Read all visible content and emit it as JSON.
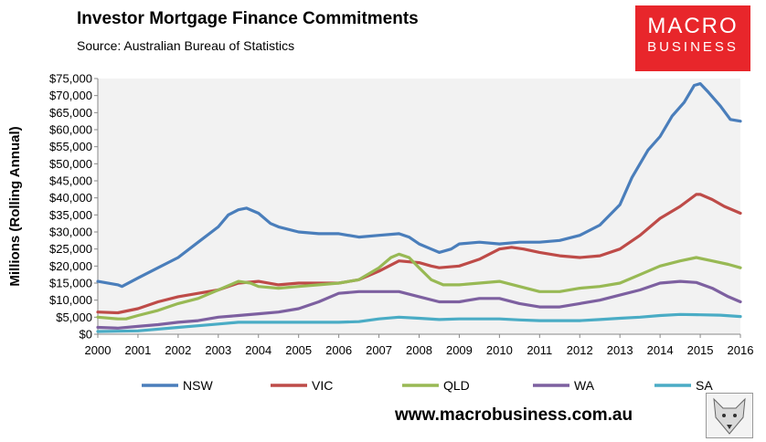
{
  "chart_data": {
    "type": "line",
    "title": "Investor Mortgage Finance Commitments",
    "subtitle": "Source: Australian Bureau of Statistics",
    "xlabel": "",
    "ylabel": "Millions (Rolling Annual)",
    "xlim": [
      2000,
      2016
    ],
    "ylim": [
      0,
      75000
    ],
    "x_ticks": [
      "2000",
      "2001",
      "2002",
      "2003",
      "2004",
      "2005",
      "2006",
      "2007",
      "2008",
      "2009",
      "2010",
      "2011",
      "2012",
      "2013",
      "2014",
      "2015",
      "2016"
    ],
    "y_ticks": [
      "$0",
      "$5,000",
      "$10,000",
      "$15,000",
      "$20,000",
      "$25,000",
      "$30,000",
      "$35,000",
      "$40,000",
      "$45,000",
      "$50,000",
      "$55,000",
      "$60,000",
      "$65,000",
      "$70,000",
      "$75,000"
    ],
    "grid": false,
    "legend_position": "bottom",
    "series": [
      {
        "name": "NSW",
        "color": "#4a7ebb",
        "points": [
          [
            2000,
            15500
          ],
          [
            2000.5,
            14500
          ],
          [
            2000.6,
            14000
          ],
          [
            2001,
            16500
          ],
          [
            2001.5,
            19500
          ],
          [
            2002,
            22500
          ],
          [
            2002.5,
            27000
          ],
          [
            2003,
            31500
          ],
          [
            2003.25,
            35000
          ],
          [
            2003.5,
            36500
          ],
          [
            2003.7,
            37000
          ],
          [
            2004,
            35500
          ],
          [
            2004.3,
            32500
          ],
          [
            2004.5,
            31500
          ],
          [
            2005,
            30000
          ],
          [
            2005.5,
            29500
          ],
          [
            2006,
            29500
          ],
          [
            2006.5,
            28500
          ],
          [
            2007,
            29000
          ],
          [
            2007.5,
            29500
          ],
          [
            2007.75,
            28500
          ],
          [
            2008,
            26500
          ],
          [
            2008.3,
            25000
          ],
          [
            2008.5,
            24000
          ],
          [
            2008.8,
            25000
          ],
          [
            2009,
            26500
          ],
          [
            2009.5,
            27000
          ],
          [
            2010,
            26500
          ],
          [
            2010.5,
            27000
          ],
          [
            2011,
            27000
          ],
          [
            2011.5,
            27500
          ],
          [
            2012,
            29000
          ],
          [
            2012.5,
            32000
          ],
          [
            2013,
            38000
          ],
          [
            2013.3,
            46000
          ],
          [
            2013.7,
            54000
          ],
          [
            2014,
            58000
          ],
          [
            2014.3,
            64000
          ],
          [
            2014.6,
            68000
          ],
          [
            2014.85,
            73000
          ],
          [
            2015,
            73500
          ],
          [
            2015.2,
            71000
          ],
          [
            2015.5,
            67000
          ],
          [
            2015.75,
            63000
          ],
          [
            2016,
            62500
          ]
        ]
      },
      {
        "name": "VIC",
        "color": "#be4b48",
        "points": [
          [
            2000,
            6500
          ],
          [
            2000.5,
            6300
          ],
          [
            2001,
            7500
          ],
          [
            2001.5,
            9500
          ],
          [
            2002,
            11000
          ],
          [
            2002.5,
            12000
          ],
          [
            2003,
            13000
          ],
          [
            2003.5,
            15000
          ],
          [
            2004,
            15500
          ],
          [
            2004.5,
            14500
          ],
          [
            2005,
            15000
          ],
          [
            2005.5,
            15000
          ],
          [
            2006,
            15000
          ],
          [
            2006.5,
            16000
          ],
          [
            2007,
            18500
          ],
          [
            2007.5,
            21500
          ],
          [
            2008,
            21000
          ],
          [
            2008.3,
            20000
          ],
          [
            2008.5,
            19500
          ],
          [
            2009,
            20000
          ],
          [
            2009.5,
            22000
          ],
          [
            2010,
            25000
          ],
          [
            2010.3,
            25500
          ],
          [
            2010.6,
            25000
          ],
          [
            2011,
            24000
          ],
          [
            2011.5,
            23000
          ],
          [
            2012,
            22500
          ],
          [
            2012.5,
            23000
          ],
          [
            2013,
            25000
          ],
          [
            2013.5,
            29000
          ],
          [
            2014,
            34000
          ],
          [
            2014.5,
            37500
          ],
          [
            2014.9,
            41000
          ],
          [
            2015,
            41000
          ],
          [
            2015.3,
            39500
          ],
          [
            2015.6,
            37500
          ],
          [
            2016,
            35500
          ]
        ]
      },
      {
        "name": "QLD",
        "color": "#98b954",
        "points": [
          [
            2000,
            5000
          ],
          [
            2000.5,
            4500
          ],
          [
            2000.7,
            4500
          ],
          [
            2001,
            5500
          ],
          [
            2001.5,
            7000
          ],
          [
            2002,
            9000
          ],
          [
            2002.5,
            10500
          ],
          [
            2003,
            13000
          ],
          [
            2003.5,
            15500
          ],
          [
            2003.8,
            15000
          ],
          [
            2004,
            14000
          ],
          [
            2004.5,
            13500
          ],
          [
            2005,
            14000
          ],
          [
            2005.5,
            14500
          ],
          [
            2006,
            15000
          ],
          [
            2006.5,
            16000
          ],
          [
            2007,
            19500
          ],
          [
            2007.3,
            22500
          ],
          [
            2007.5,
            23500
          ],
          [
            2007.75,
            22500
          ],
          [
            2008,
            19500
          ],
          [
            2008.3,
            16000
          ],
          [
            2008.6,
            14500
          ],
          [
            2009,
            14500
          ],
          [
            2009.5,
            15000
          ],
          [
            2010,
            15500
          ],
          [
            2010.5,
            14000
          ],
          [
            2011,
            12500
          ],
          [
            2011.5,
            12500
          ],
          [
            2012,
            13500
          ],
          [
            2012.5,
            14000
          ],
          [
            2013,
            15000
          ],
          [
            2013.5,
            17500
          ],
          [
            2014,
            20000
          ],
          [
            2014.5,
            21500
          ],
          [
            2014.9,
            22500
          ],
          [
            2015.3,
            21500
          ],
          [
            2015.7,
            20500
          ],
          [
            2016,
            19500
          ]
        ]
      },
      {
        "name": "WA",
        "color": "#7d60a0",
        "points": [
          [
            2000,
            2000
          ],
          [
            2000.5,
            1800
          ],
          [
            2001,
            2300
          ],
          [
            2001.5,
            2800
          ],
          [
            2002,
            3500
          ],
          [
            2002.5,
            4000
          ],
          [
            2003,
            5000
          ],
          [
            2003.5,
            5500
          ],
          [
            2004,
            6000
          ],
          [
            2004.5,
            6500
          ],
          [
            2005,
            7500
          ],
          [
            2005.5,
            9500
          ],
          [
            2006,
            12000
          ],
          [
            2006.5,
            12500
          ],
          [
            2007,
            12500
          ],
          [
            2007.5,
            12500
          ],
          [
            2008,
            11000
          ],
          [
            2008.5,
            9500
          ],
          [
            2009,
            9500
          ],
          [
            2009.5,
            10500
          ],
          [
            2010,
            10500
          ],
          [
            2010.5,
            9000
          ],
          [
            2011,
            8000
          ],
          [
            2011.5,
            8000
          ],
          [
            2012,
            9000
          ],
          [
            2012.5,
            10000
          ],
          [
            2013,
            11500
          ],
          [
            2013.5,
            13000
          ],
          [
            2014,
            15000
          ],
          [
            2014.5,
            15500
          ],
          [
            2014.9,
            15200
          ],
          [
            2015.3,
            13500
          ],
          [
            2015.7,
            11000
          ],
          [
            2016,
            9500
          ]
        ]
      },
      {
        "name": "SA",
        "color": "#4aacc5",
        "points": [
          [
            2000,
            800
          ],
          [
            2001,
            1000
          ],
          [
            2002,
            2000
          ],
          [
            2002.5,
            2500
          ],
          [
            2003,
            3000
          ],
          [
            2003.5,
            3500
          ],
          [
            2004,
            3500
          ],
          [
            2005,
            3500
          ],
          [
            2006,
            3500
          ],
          [
            2006.5,
            3700
          ],
          [
            2007,
            4500
          ],
          [
            2007.5,
            5000
          ],
          [
            2008,
            4700
          ],
          [
            2008.5,
            4300
          ],
          [
            2009,
            4500
          ],
          [
            2010,
            4500
          ],
          [
            2010.5,
            4200
          ],
          [
            2011,
            4000
          ],
          [
            2011.5,
            4000
          ],
          [
            2012,
            4000
          ],
          [
            2012.5,
            4300
          ],
          [
            2013,
            4700
          ],
          [
            2013.5,
            5000
          ],
          [
            2014,
            5500
          ],
          [
            2014.5,
            5800
          ],
          [
            2015,
            5700
          ],
          [
            2015.5,
            5600
          ],
          [
            2016,
            5200
          ]
        ]
      }
    ]
  },
  "branding": {
    "logo_line1": "MACRO",
    "logo_line2": "BUSINESS",
    "url": "www.macrobusiness.com.au"
  }
}
